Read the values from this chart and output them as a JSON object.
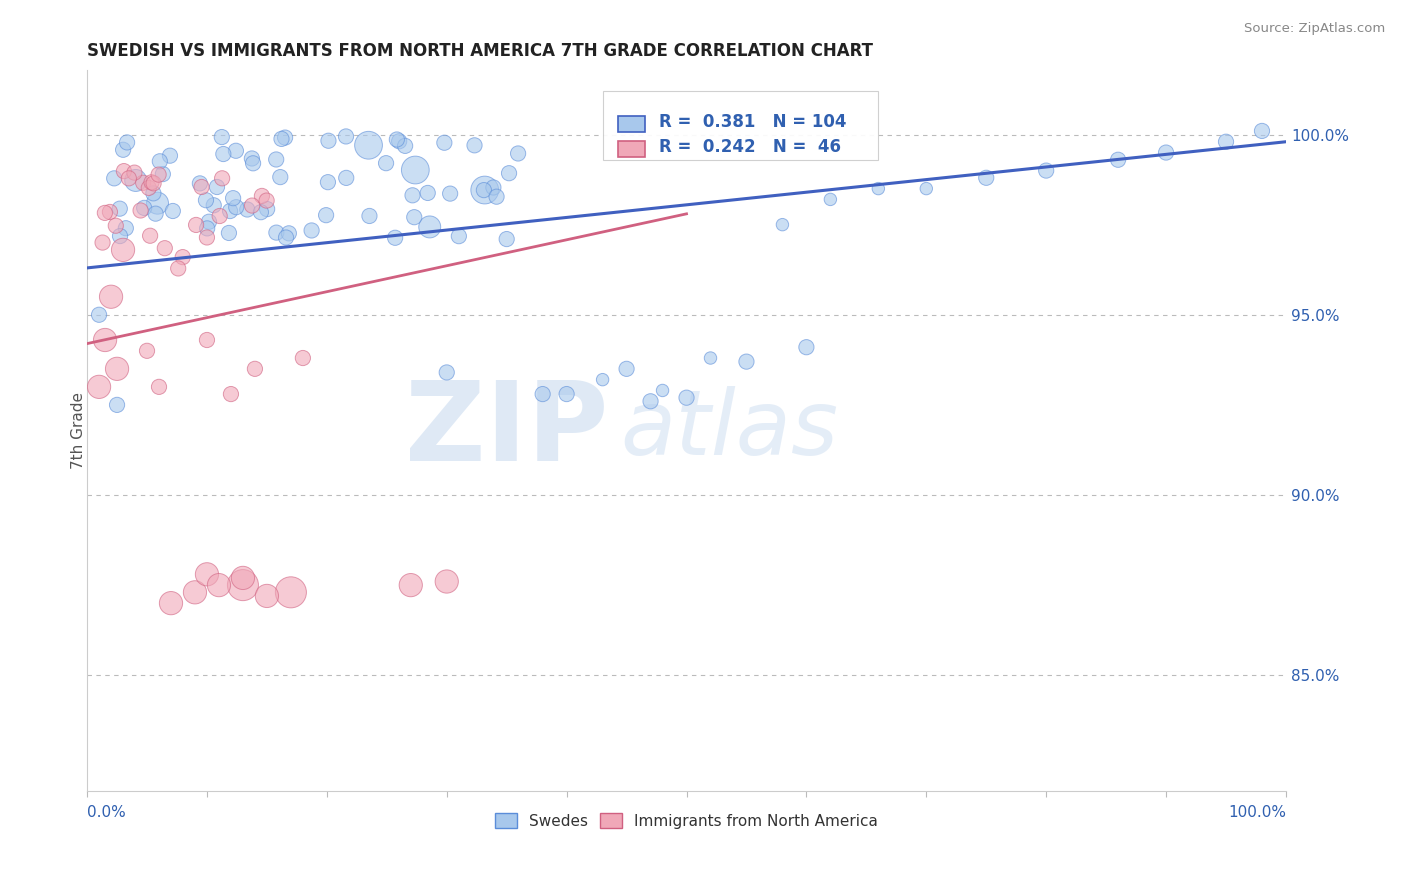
{
  "title": "SWEDISH VS IMMIGRANTS FROM NORTH AMERICA 7TH GRADE CORRELATION CHART",
  "source": "Source: ZipAtlas.com",
  "ylabel": "7th Grade",
  "ylabel_right_ticks": [
    "100.0%",
    "95.0%",
    "90.0%",
    "85.0%"
  ],
  "ylabel_right_values": [
    1.0,
    0.95,
    0.9,
    0.85
  ],
  "xmin": 0.0,
  "xmax": 1.0,
  "ymin": 0.818,
  "ymax": 1.018,
  "blue_color": "#A8C8EC",
  "blue_edge_color": "#5B8DD9",
  "pink_color": "#F0A8B8",
  "pink_edge_color": "#D06080",
  "blue_line_color": "#4060C0",
  "pink_line_color": "#D06080",
  "R_blue": 0.381,
  "N_blue": 104,
  "R_pink": 0.242,
  "N_pink": 46,
  "legend_label_blue": "Swedes",
  "legend_label_pink": "Immigrants from North America",
  "watermark_zip": "ZIP",
  "watermark_atlas": "atlas",
  "text_color_blue": "#3060B0",
  "dotted_line_y": 1.0,
  "blue_trend_x": [
    0.0,
    1.0
  ],
  "blue_trend_y": [
    0.963,
    0.998
  ],
  "pink_trend_x": [
    0.0,
    0.5
  ],
  "pink_trend_y": [
    0.942,
    0.978
  ],
  "horiz_dotted_lines": [
    1.0,
    0.95,
    0.9,
    0.85
  ]
}
